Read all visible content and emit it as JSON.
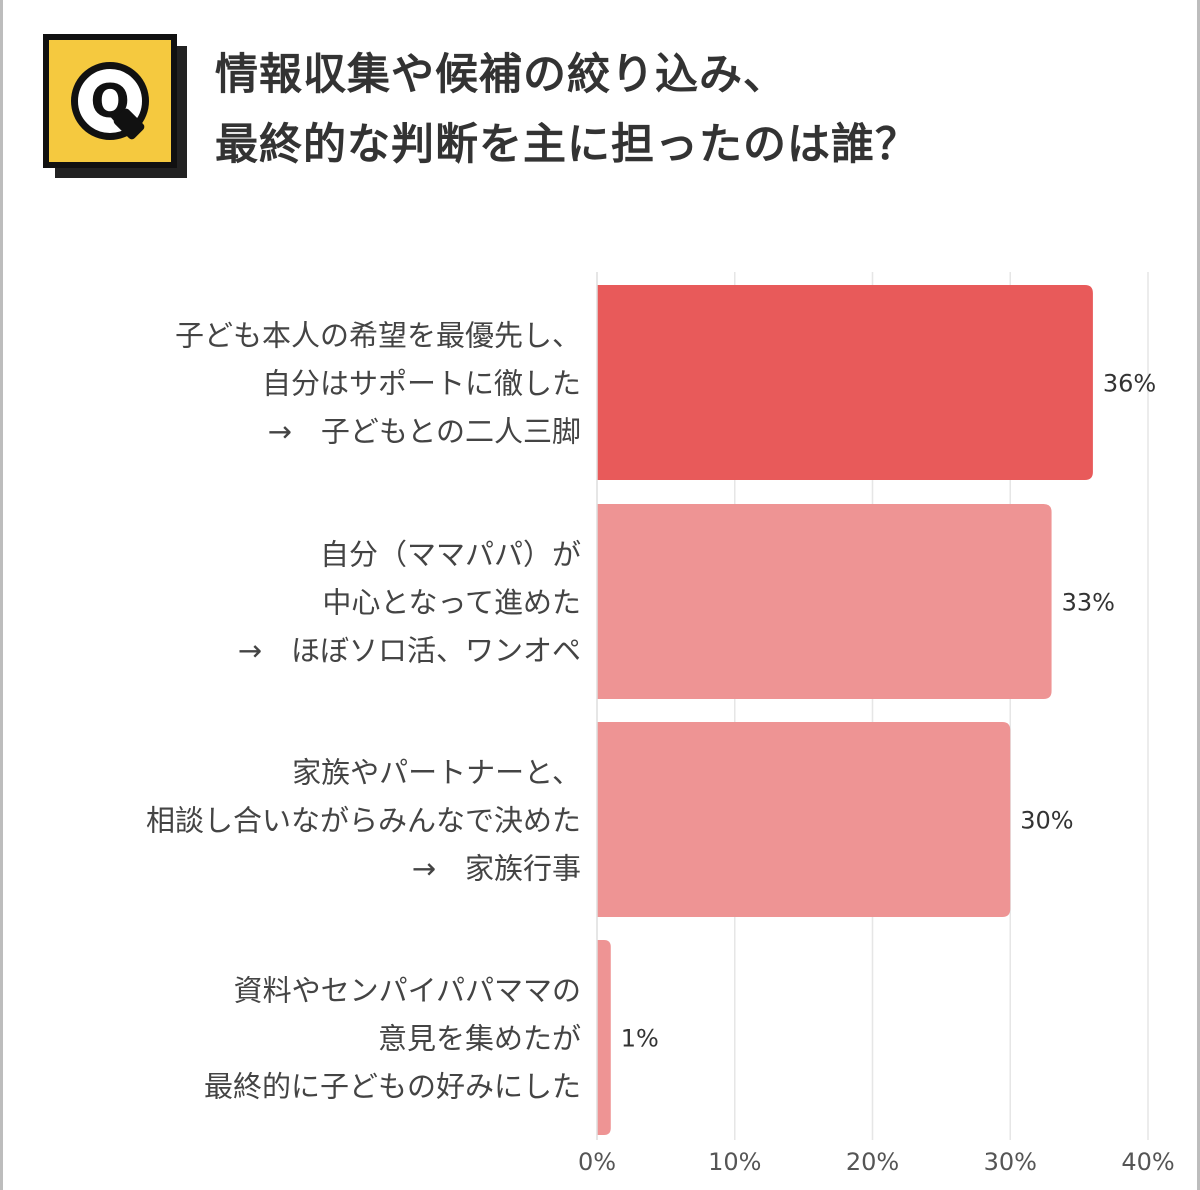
{
  "title_lines": [
    "情報収集や候補の絞り込み、",
    "最終的な判断を主に担ったのは誰？"
  ],
  "badge": {
    "letter": "Q",
    "color": "#f5c93f"
  },
  "chart_data": {
    "type": "bar",
    "orientation": "horizontal",
    "categories": [
      [
        "子ども本人の希望を最優先し、",
        "自分はサポートに徹した",
        "→　子どもとの二人三脚"
      ],
      [
        "自分（ママパパ）が",
        "中心となって進めた",
        "→　ほぼソロ活、ワンオペ"
      ],
      [
        "家族やパートナーと、",
        "相談し合いながらみんなで決めた",
        "→　家族行事"
      ],
      [
        "資料やセンパイパパママの",
        "意見を集めたが",
        "最終的に子どもの好みにした"
      ]
    ],
    "values": [
      36,
      33,
      30,
      1
    ],
    "value_labels": [
      "36%",
      "33%",
      "30%",
      "1%"
    ],
    "colors": [
      "#e85a5a",
      "#ee9494",
      "#ee9494",
      "#ee9494"
    ],
    "xlim": [
      0,
      40
    ],
    "xticks": [
      0,
      10,
      20,
      30,
      40
    ],
    "xtick_labels": [
      "0%",
      "10%",
      "20%",
      "30%",
      "40%"
    ],
    "grid": true
  }
}
